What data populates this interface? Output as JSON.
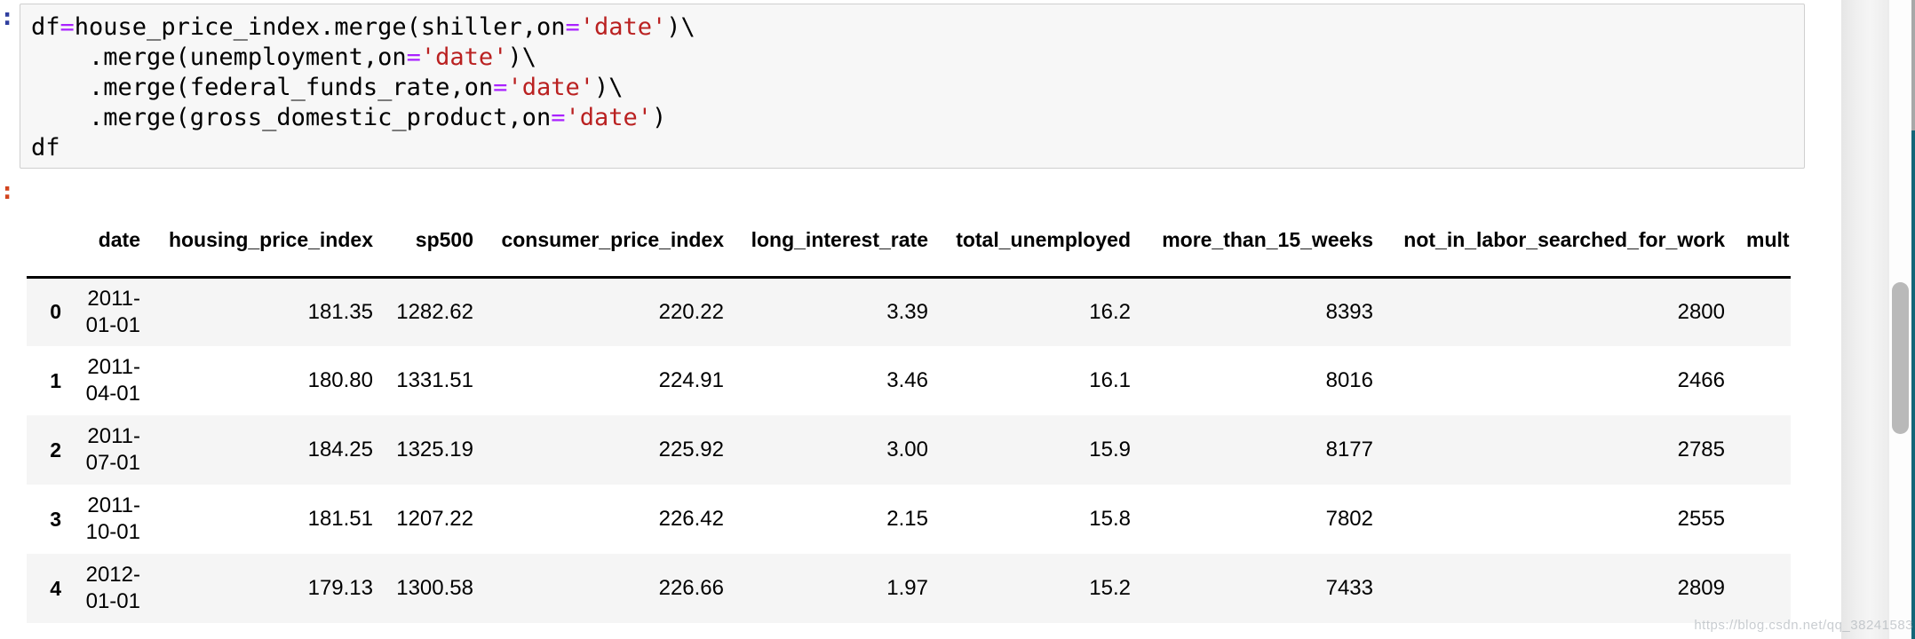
{
  "notebook": {
    "input_prompt": ":",
    "output_prompt": ":",
    "code": {
      "lines": [
        {
          "tokens": [
            {
              "text": "df"
            },
            {
              "text": "=",
              "type": "operator"
            },
            {
              "text": "house_price_index.merge(shiller,on"
            },
            {
              "text": "=",
              "type": "operator"
            },
            {
              "text": "'date'",
              "type": "string"
            },
            {
              "text": ")\\"
            }
          ]
        },
        {
          "tokens": [
            {
              "text": "    .merge(unemployment,on"
            },
            {
              "text": "=",
              "type": "operator"
            },
            {
              "text": "'date'",
              "type": "string"
            },
            {
              "text": ")\\"
            }
          ]
        },
        {
          "tokens": [
            {
              "text": "    .merge(federal_funds_rate,on"
            },
            {
              "text": "=",
              "type": "operator"
            },
            {
              "text": "'date'",
              "type": "string"
            },
            {
              "text": ")\\"
            }
          ]
        },
        {
          "tokens": [
            {
              "text": "    .merge(gross_domestic_product,on"
            },
            {
              "text": "=",
              "type": "operator"
            },
            {
              "text": "'date'",
              "type": "string"
            },
            {
              "text": ")"
            }
          ]
        },
        {
          "tokens": [
            {
              "text": "df"
            }
          ]
        }
      ]
    },
    "output_table": {
      "index_header": "",
      "columns": [
        "date",
        "housing_price_index",
        "sp500",
        "consumer_price_index",
        "long_interest_rate",
        "total_unemployed",
        "more_than_15_weeks",
        "not_in_labor_searched_for_work",
        "mult"
      ],
      "index": [
        "0",
        "1",
        "2",
        "3",
        "4"
      ],
      "rows": [
        [
          "2011-01-01",
          "181.35",
          "1282.62",
          "220.22",
          "3.39",
          "16.2",
          "8393",
          "2800",
          ""
        ],
        [
          "2011-04-01",
          "180.80",
          "1331.51",
          "224.91",
          "3.46",
          "16.1",
          "8016",
          "2466",
          ""
        ],
        [
          "2011-07-01",
          "184.25",
          "1325.19",
          "225.92",
          "3.00",
          "15.9",
          "8177",
          "2785",
          ""
        ],
        [
          "2011-10-01",
          "181.51",
          "1207.22",
          "226.42",
          "2.15",
          "15.8",
          "7802",
          "2555",
          ""
        ],
        [
          "2012-01-01",
          "179.13",
          "1300.58",
          "226.66",
          "1.97",
          "15.2",
          "7433",
          "2809",
          ""
        ]
      ]
    }
  },
  "watermark": "https://blog.csdn.net/qq_38241583",
  "colors": {
    "operator_token": "#AA22FF",
    "string_token": "#BA2121",
    "input_prompt": "#303F9F",
    "output_prompt": "#D2441E",
    "row_stripe": "#F5F5F5",
    "header_separator": "#000000",
    "scrollbar_thumb": "#B9B9B9",
    "edge_strip_teal": "#136678"
  }
}
